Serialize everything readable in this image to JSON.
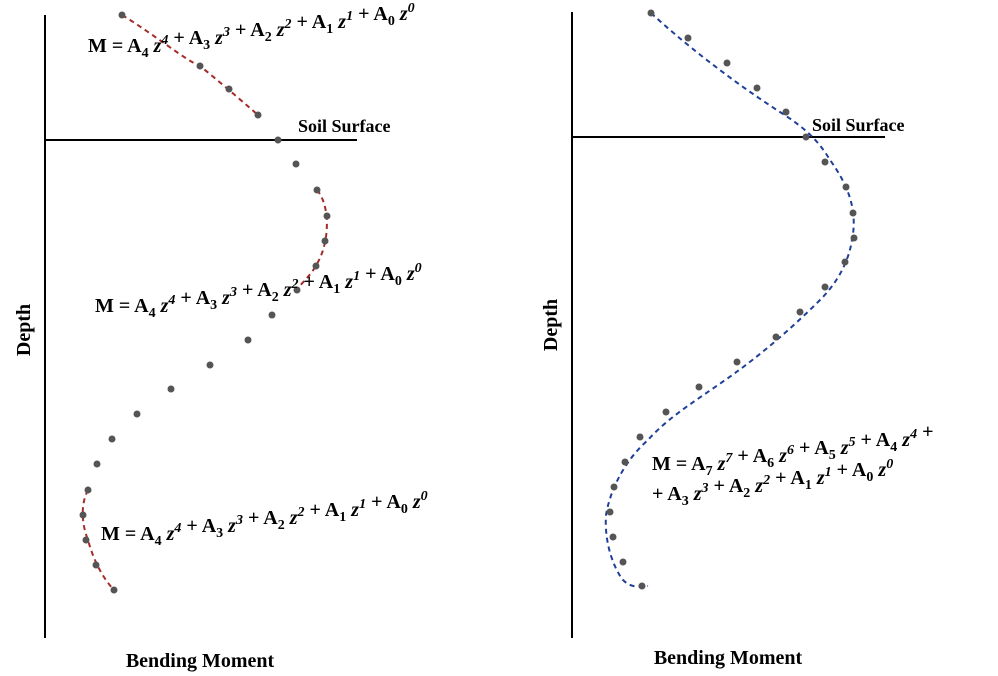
{
  "left_panel": {
    "ylabel": "Depth",
    "xlabel": "Bending Moment",
    "surface_label": "Soil Surface",
    "equations": [
      {
        "terms": [
          {
            "base": "M = A",
            "sub": "4",
            "var": "z",
            "sup": "4"
          },
          {
            "base": " + A",
            "sub": "3",
            "var": "z",
            "sup": "3"
          },
          {
            "base": " + A",
            "sub": "2",
            "var": "z",
            "sup": "2"
          },
          {
            "base": " + A",
            "sub": "1",
            "var": "z",
            "sup": "1"
          },
          {
            "base": " + A",
            "sub": "0",
            "var": "z",
            "sup": "0"
          }
        ]
      },
      {
        "terms": [
          {
            "base": "M = A",
            "sub": "4",
            "var": "z",
            "sup": "4"
          },
          {
            "base": " + A",
            "sub": "3",
            "var": "z",
            "sup": "3"
          },
          {
            "base": " + A",
            "sub": "2",
            "var": "z",
            "sup": "2"
          },
          {
            "base": " + A",
            "sub": "1",
            "var": "z",
            "sup": "1"
          },
          {
            "base": " + A",
            "sub": "0",
            "var": "z",
            "sup": "0"
          }
        ]
      },
      {
        "terms": [
          {
            "base": "M = A",
            "sub": "4",
            "var": "z",
            "sup": "4"
          },
          {
            "base": " + A",
            "sub": "3",
            "var": "z",
            "sup": "3"
          },
          {
            "base": " + A",
            "sub": "2",
            "var": "z",
            "sup": "2"
          },
          {
            "base": " + A",
            "sub": "1",
            "var": "z",
            "sup": "1"
          },
          {
            "base": " + A",
            "sub": "0",
            "var": "z",
            "sup": "0"
          }
        ]
      }
    ],
    "fit_color": "#a52a2a",
    "point_color": "#555555"
  },
  "right_panel": {
    "ylabel": "Depth",
    "xlabel": "Bending Moment",
    "surface_label": "Soil Surface",
    "equation_line1": [
      {
        "base": "M = A",
        "sub": "7",
        "var": "z",
        "sup": "7"
      },
      {
        "base": " + A",
        "sub": "6",
        "var": "z",
        "sup": "6"
      },
      {
        "base": " + A",
        "sub": "5",
        "var": "z",
        "sup": "5"
      },
      {
        "base": " + A",
        "sub": "4",
        "var": "z",
        "sup": "4"
      },
      {
        "base": " +",
        "sub": "",
        "var": "",
        "sup": ""
      }
    ],
    "equation_line2": [
      {
        "base": "+ A",
        "sub": "3",
        "var": "z",
        "sup": "3"
      },
      {
        "base": " + A",
        "sub": "2",
        "var": "z",
        "sup": "2"
      },
      {
        "base": " + A",
        "sub": "1",
        "var": "z",
        "sup": "1"
      },
      {
        "base": " + A",
        "sub": "0",
        "var": "z",
        "sup": "0"
      }
    ],
    "fit_color": "#1f3f99",
    "point_color": "#555555"
  }
}
